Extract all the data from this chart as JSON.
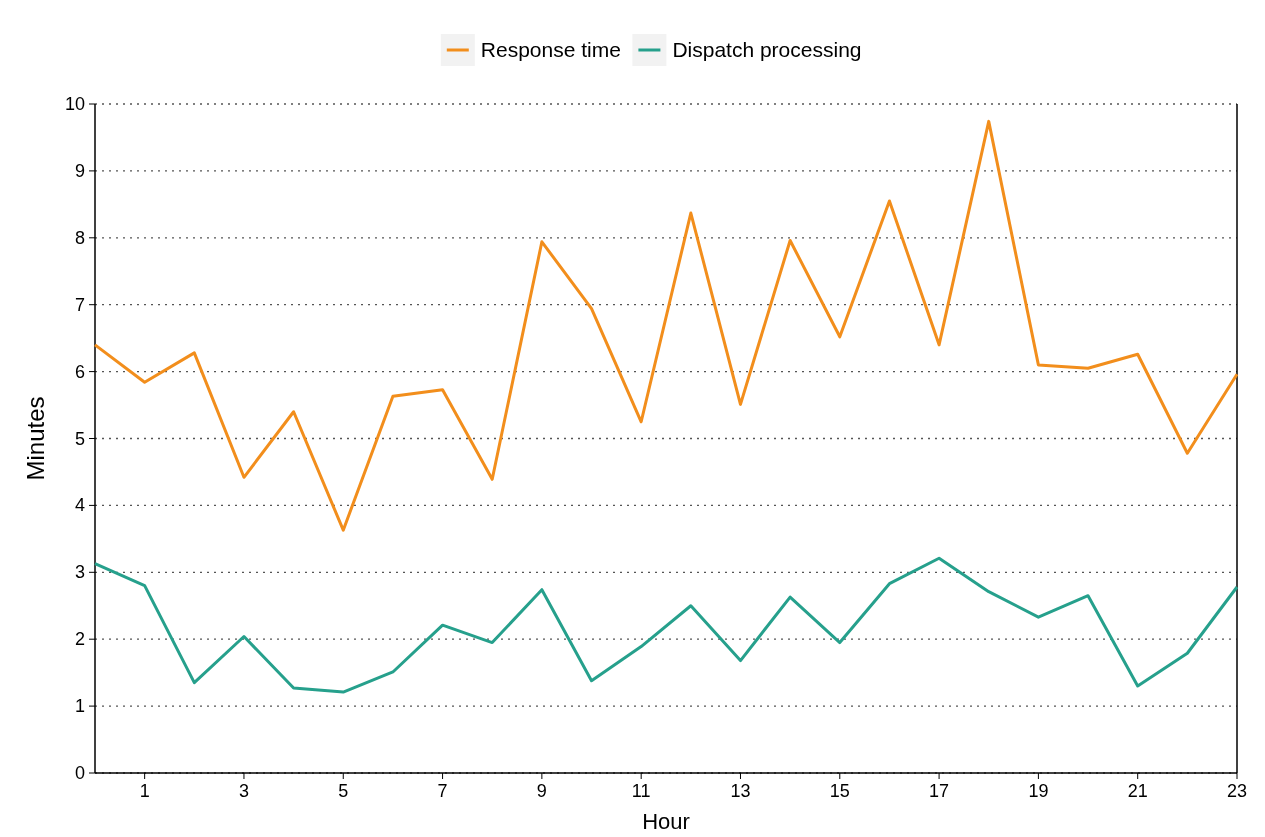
{
  "chart_data": {
    "type": "line",
    "xlabel": "Hour",
    "ylabel": "Minutes",
    "x": [
      0,
      1,
      2,
      3,
      4,
      5,
      6,
      7,
      8,
      9,
      10,
      11,
      12,
      13,
      14,
      15,
      16,
      17,
      18,
      19,
      20,
      21,
      22,
      23
    ],
    "series": [
      {
        "name": "Response time",
        "color": "#f28e1c",
        "values": [
          6.4,
          5.84,
          6.28,
          4.42,
          5.4,
          3.63,
          5.63,
          5.73,
          4.39,
          7.94,
          6.94,
          5.25,
          8.37,
          5.51,
          7.96,
          6.52,
          8.55,
          6.4,
          9.74,
          6.1,
          6.05,
          6.26,
          4.78,
          5.96
        ]
      },
      {
        "name": "Dispatch processing",
        "color": "#26a08c",
        "values": [
          3.13,
          2.8,
          1.35,
          2.04,
          1.27,
          1.21,
          1.51,
          2.21,
          1.95,
          2.74,
          1.38,
          1.89,
          2.5,
          1.68,
          2.63,
          1.95,
          2.83,
          3.21,
          2.71,
          2.33,
          2.65,
          1.3,
          1.79,
          2.78
        ]
      }
    ],
    "xlim": [
      0,
      23
    ],
    "xticks": [
      1,
      3,
      5,
      7,
      9,
      11,
      13,
      15,
      17,
      19,
      21,
      23
    ],
    "ylim": [
      0,
      10
    ],
    "yticks": [
      0,
      1,
      2,
      3,
      4,
      5,
      6,
      7,
      8,
      9,
      10
    ],
    "grid": "y",
    "legend": "top",
    "marker": "none",
    "line_style": "solid"
  }
}
